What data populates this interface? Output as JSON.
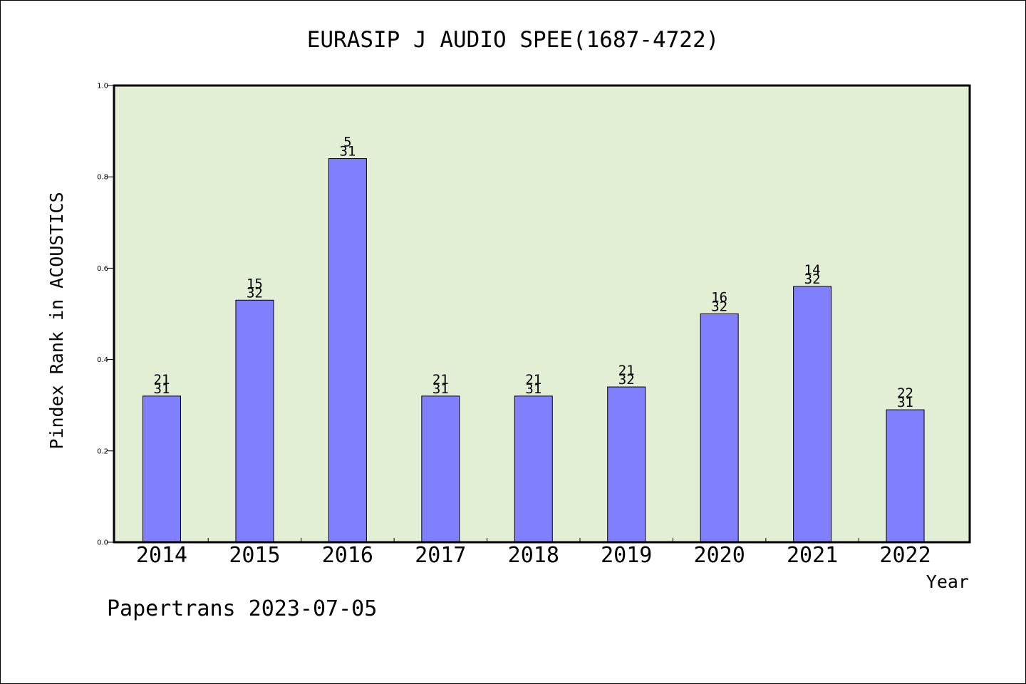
{
  "chart_data": {
    "type": "bar",
    "title": "EURASIP J AUDIO SPEE(1687-4722)",
    "xlabel": "Year",
    "ylabel": "Pindex Rank in ACOUSTICS",
    "ylim": [
      0,
      1.0
    ],
    "yticks": [
      "0.0",
      "0.2",
      "0.4",
      "0.6",
      "0.8",
      "1.0"
    ],
    "categories": [
      "2014",
      "2015",
      "2016",
      "2017",
      "2018",
      "2019",
      "2020",
      "2021",
      "2022"
    ],
    "values": [
      0.32,
      0.53,
      0.84,
      0.32,
      0.32,
      0.34,
      0.5,
      0.56,
      0.29
    ],
    "ranks": [
      "21",
      "15",
      "5",
      "21",
      "21",
      "21",
      "16",
      "14",
      "22"
    ],
    "totals": [
      "31",
      "32",
      "31",
      "31",
      "31",
      "32",
      "32",
      "32",
      "31"
    ],
    "grid": false,
    "bar_color": "#8080ff",
    "plot_background": "#e2efd5"
  },
  "footer": "Papertrans 2023-07-05"
}
